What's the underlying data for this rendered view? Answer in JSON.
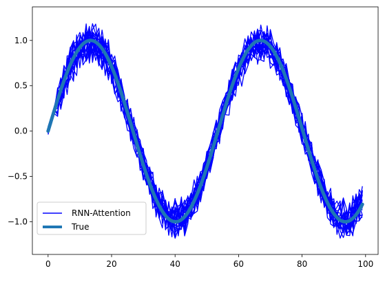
{
  "chart_data": {
    "type": "line",
    "xlim": [
      -4.95,
      103.95
    ],
    "ylim": [
      -1.36,
      1.37
    ],
    "x_ticks": [
      0,
      20,
      40,
      60,
      80,
      100
    ],
    "y_ticks": [
      -1.0,
      -0.5,
      0.0,
      0.5,
      1.0
    ],
    "x_tick_labels": [
      "0",
      "20",
      "40",
      "60",
      "80",
      "100"
    ],
    "y_tick_labels": [
      "−1.0",
      "−0.5",
      "0.0",
      "0.5",
      "1.0"
    ],
    "true_series": {
      "name": "True",
      "color": "#1f77b4",
      "x_start": 0,
      "x_end": 99,
      "period": 53.5,
      "amplitude": 1.0
    },
    "rnn_series": {
      "name": "RNN-Attention",
      "color": "#0000ff",
      "count": 20,
      "noise_amplitude": 0.16
    },
    "legend": {
      "position": "lower left",
      "entries": [
        {
          "label": "RNN-Attention",
          "color": "#0000ff",
          "style": "thin"
        },
        {
          "label": "True",
          "color": "#1f77b4",
          "style": "thick"
        }
      ]
    }
  }
}
